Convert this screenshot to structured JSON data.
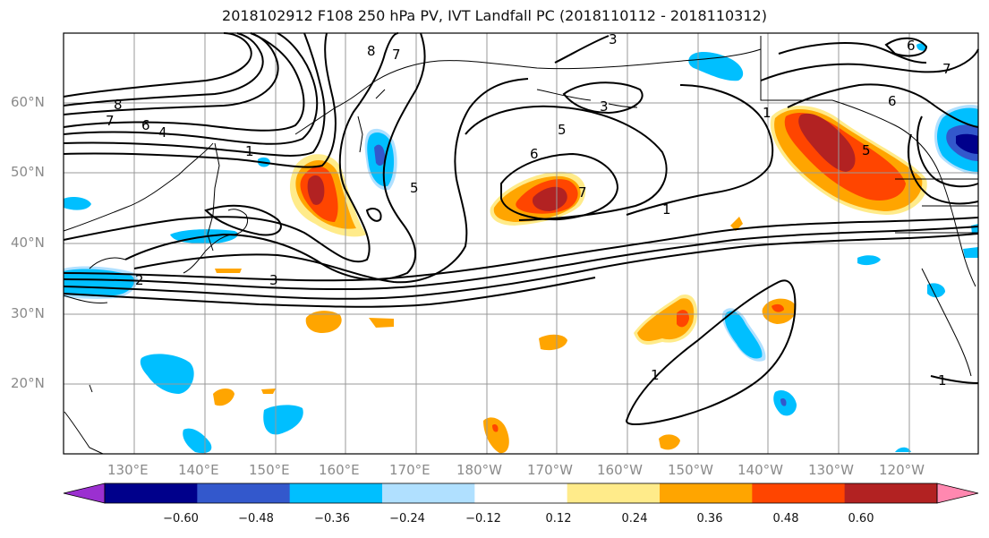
{
  "title": "2018102912 F108 250 hPa PV, IVT Landfall PC (2018110112 - 2018110312)",
  "lat_labels": [
    "60°N",
    "50°N",
    "40°N",
    "30°N",
    "20°N"
  ],
  "lon_labels": [
    "130°E",
    "140°E",
    "150°E",
    "160°E",
    "170°E",
    "180°W",
    "170°W",
    "160°W",
    "150°W",
    "140°W",
    "130°W",
    "120°W"
  ],
  "colorbar": {
    "ticks": [
      "−0.60",
      "−0.48",
      "−0.36",
      "−0.24",
      "−0.12",
      "0.12",
      "0.24",
      "0.36",
      "0.48",
      "0.60"
    ],
    "colors": [
      "#9b30d0",
      "#00008b",
      "#3358cc",
      "#00bfff",
      "#b0e0ff",
      "#ffffff",
      "#ffeb8a",
      "#ffa500",
      "#ff4500",
      "#b22222",
      "#ff88b0"
    ]
  },
  "contour_labels": [
    "8",
    "7",
    "6",
    "4",
    "1",
    "8",
    "7",
    "3",
    "3",
    "5",
    "6",
    "7",
    "5",
    "1",
    "3",
    "2",
    "1",
    "1",
    "6",
    "7",
    "6",
    "5",
    "1"
  ],
  "colors": {
    "positive_strong": "#b22222",
    "positive": "#ff4500",
    "positive_weak": "#ffa500",
    "positive_faint": "#ffeb8a",
    "negative_faint": "#b0e0ff",
    "negative": "#00bfff",
    "negative_strong": "#3358cc",
    "negative_max": "#00008b"
  }
}
